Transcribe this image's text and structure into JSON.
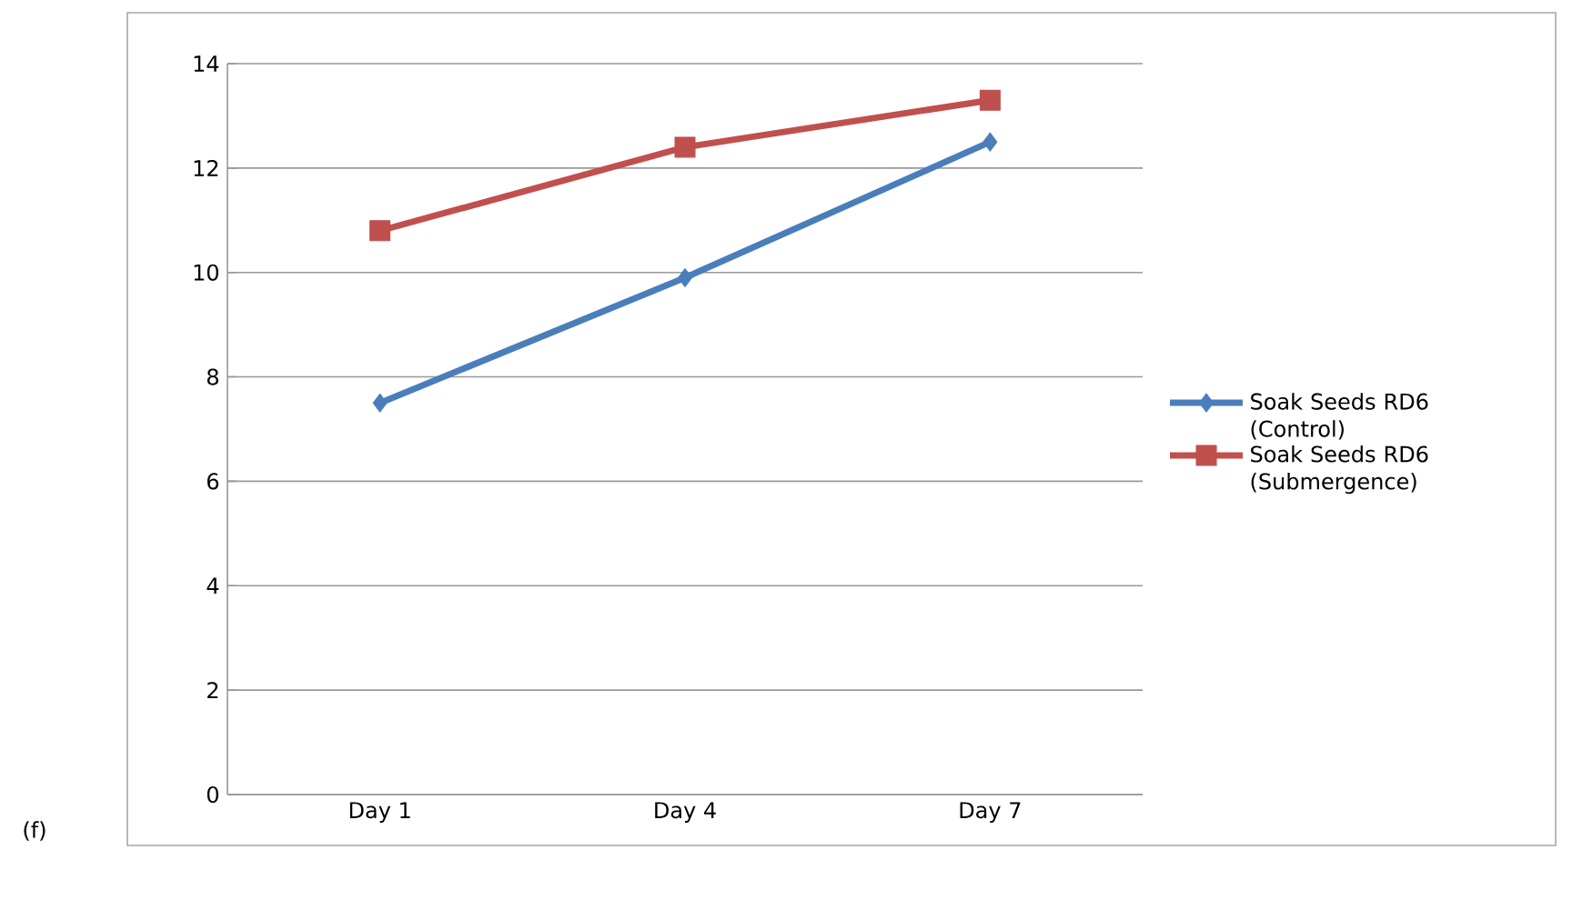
{
  "chart_data": {
    "type": "line",
    "categories": [
      "Day 1",
      "Day 4",
      "Day 7"
    ],
    "series": [
      {
        "name": "Soak Seeds RD6 (Control)",
        "color": "#4a7ebb",
        "marker": "diamond",
        "values": [
          7.5,
          9.9,
          12.5
        ]
      },
      {
        "name": "Soak Seeds RD6 (Submergence)",
        "color": "#c0504d",
        "marker": "square",
        "values": [
          10.8,
          12.4,
          13.3
        ]
      }
    ],
    "ylim": [
      0,
      14
    ],
    "yticks": [
      0,
      2,
      4,
      6,
      8,
      10,
      12,
      14
    ],
    "grid": "y",
    "legend": "right",
    "annotations": [
      "(f)"
    ]
  }
}
